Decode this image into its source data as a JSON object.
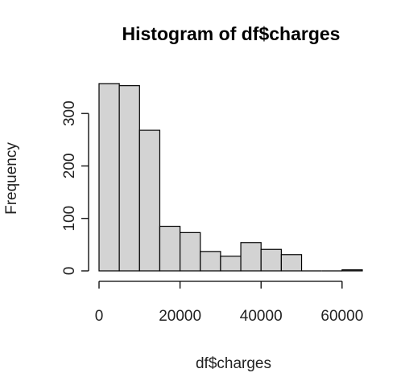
{
  "chart_data": {
    "type": "bar",
    "title": "Histogram of df$charges",
    "xlabel": "df$charges",
    "ylabel": "Frequency",
    "bin_edges": [
      0,
      5000,
      10000,
      15000,
      20000,
      25000,
      30000,
      35000,
      40000,
      45000,
      50000,
      55000,
      60000,
      65000
    ],
    "values": [
      357,
      353,
      268,
      85,
      73,
      37,
      28,
      54,
      41,
      31,
      0,
      0,
      2
    ],
    "xlim": [
      0,
      65000
    ],
    "ylim": [
      0,
      357
    ],
    "x_ticks": [
      0,
      20000,
      40000,
      60000
    ],
    "x_tick_labels": [
      "0",
      "20000",
      "40000",
      "60000"
    ],
    "y_ticks": [
      0,
      100,
      200,
      300
    ],
    "y_tick_labels": [
      "0",
      "100",
      "200",
      "300"
    ],
    "bar_fill": "#d3d3d3",
    "bar_stroke": "#000000",
    "grid": false
  }
}
